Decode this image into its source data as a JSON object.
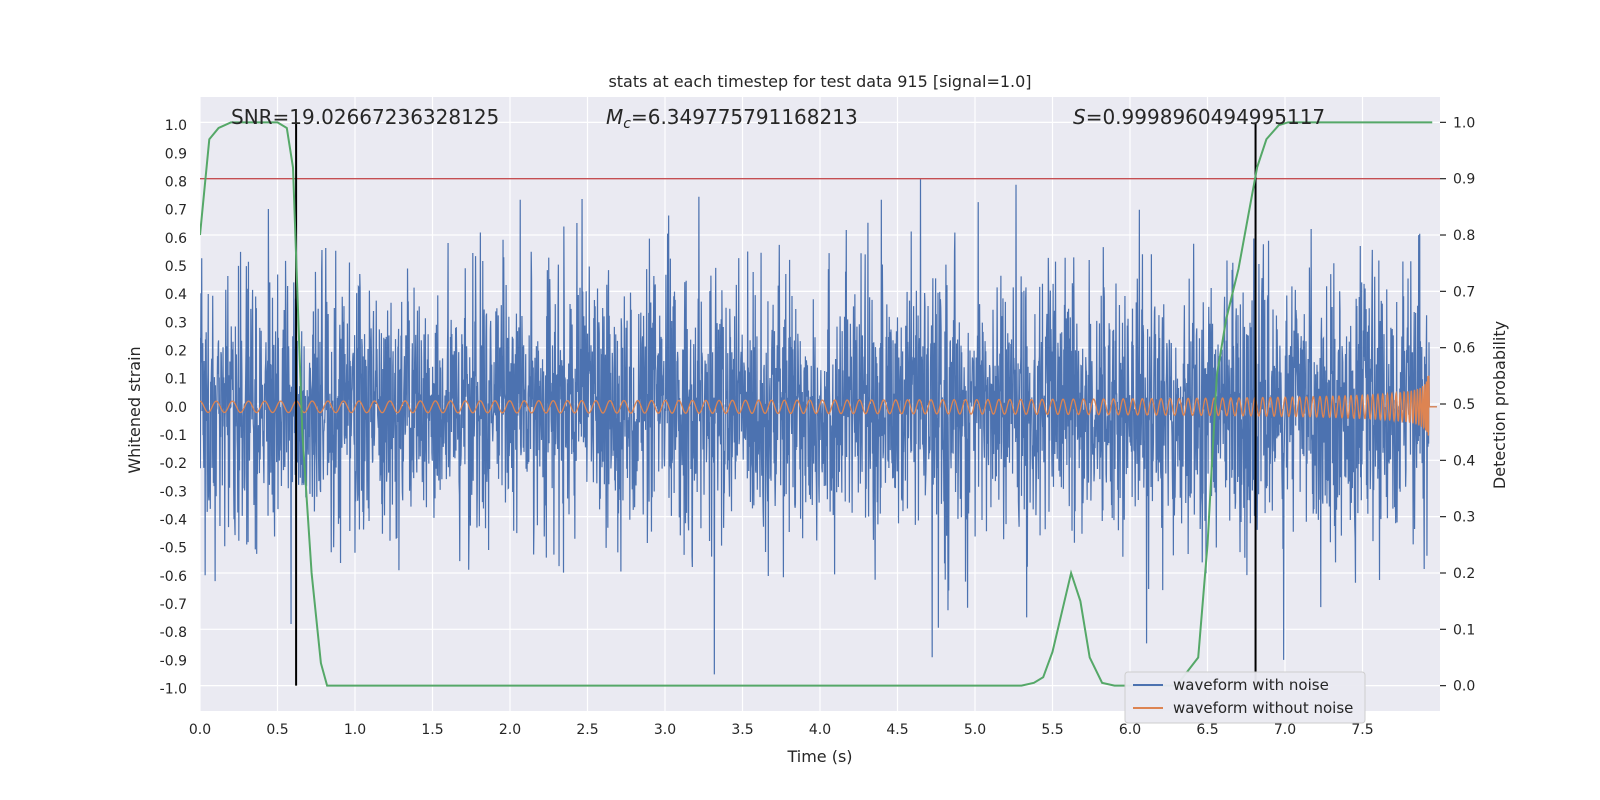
{
  "chart_data": {
    "type": "line",
    "title": "stats at each timestep for test data 915 [signal=1.0]",
    "xlabel": "Time (s)",
    "ylabel": "Whitened strain",
    "y2label": "Detection probability",
    "xlim": [
      0.0,
      8.0
    ],
    "ylim": [
      -1.08,
      1.1
    ],
    "y2lim": [
      -0.045,
      1.045
    ],
    "x_ticks": [
      "0.0",
      "0.5",
      "1.0",
      "1.5",
      "2.0",
      "2.5",
      "3.0",
      "3.5",
      "4.0",
      "4.5",
      "5.0",
      "5.5",
      "6.0",
      "6.5",
      "7.0",
      "7.5"
    ],
    "y_ticks": [
      "1.0",
      "0.9",
      "0.8",
      "0.7",
      "0.6",
      "0.5",
      "0.4",
      "0.3",
      "0.2",
      "0.1",
      "0.0",
      "-0.1",
      "-0.2",
      "-0.3",
      "-0.4",
      "-0.5",
      "-0.6",
      "-0.7",
      "-0.8",
      "-0.9",
      "-1.0"
    ],
    "y2_ticks": [
      "1.0",
      "0.9",
      "0.8",
      "0.7",
      "0.6",
      "0.5",
      "0.4",
      "0.3",
      "0.2",
      "0.1",
      "0.0"
    ],
    "annotations": {
      "snr": "SNR=19.02667236328125",
      "mc_symbol": "M",
      "mc_sub": "c",
      "mc_value": "=6.349775791168213",
      "s_symbol": "S",
      "s_value": "=0.9998960494995117"
    },
    "threshold": {
      "y2": 0.9,
      "color": "#c44e52"
    },
    "vlines": [
      0.62,
      6.81
    ],
    "series": [
      {
        "name": "waveform with noise",
        "color": "#4c72b0"
      },
      {
        "name": "waveform without noise",
        "color": "#dd8452"
      }
    ],
    "probability": {
      "color": "#55a868",
      "x": [
        0.0,
        0.06,
        0.12,
        0.2,
        0.3,
        0.4,
        0.5,
        0.56,
        0.6,
        0.66,
        0.72,
        0.78,
        0.82,
        1.0,
        2.0,
        3.0,
        4.0,
        5.0,
        5.3,
        5.38,
        5.44,
        5.5,
        5.56,
        5.62,
        5.68,
        5.74,
        5.82,
        5.9,
        6.0,
        6.3,
        6.44,
        6.5,
        6.56,
        6.62,
        6.7,
        6.76,
        6.82,
        6.88,
        6.96,
        7.02,
        7.1,
        7.5,
        7.95
      ],
      "y": [
        0.8,
        0.97,
        0.99,
        1.0,
        1.0,
        1.0,
        1.0,
        0.99,
        0.92,
        0.45,
        0.2,
        0.04,
        0.0,
        0.0,
        0.0,
        0.0,
        0.0,
        0.0,
        0.0,
        0.005,
        0.015,
        0.06,
        0.13,
        0.2,
        0.15,
        0.05,
        0.005,
        0.0,
        0.0,
        0.0,
        0.05,
        0.25,
        0.55,
        0.65,
        0.74,
        0.83,
        0.92,
        0.97,
        0.995,
        1.0,
        1.0,
        1.0,
        1.0
      ]
    }
  }
}
